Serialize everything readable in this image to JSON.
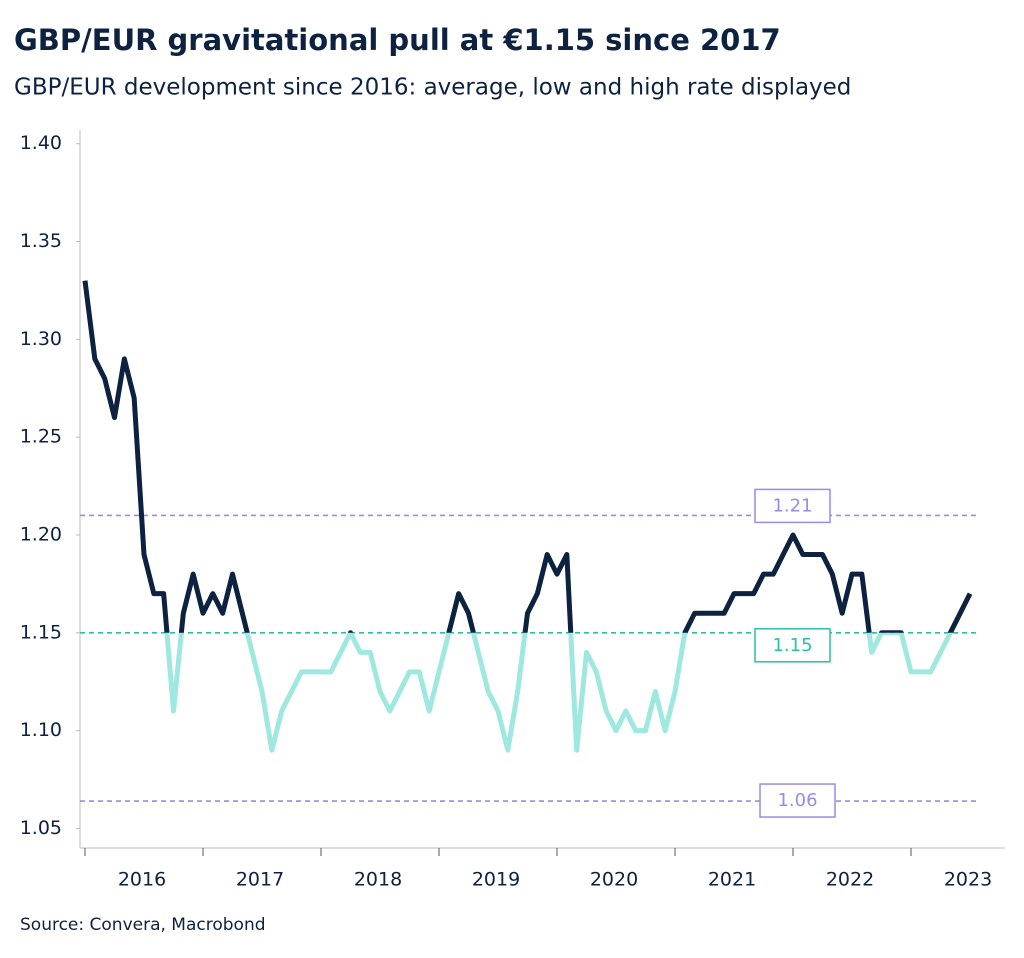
{
  "chart_data": {
    "type": "line",
    "title": "GBP/EUR gravitational pull at €1.15 since 2017",
    "subtitle": "GBP/EUR development since 2016: average, low and high rate displayed",
    "source": "Source: Convera, Macrobond",
    "categories": [
      null,
      null,
      null,
      null,
      null,
      null,
      "2016",
      null,
      null,
      null,
      null,
      null,
      null,
      null,
      null,
      null,
      null,
      null,
      "2017",
      null,
      null,
      null,
      null,
      null,
      null,
      null,
      null,
      null,
      null,
      null,
      "2018",
      null,
      null,
      null,
      null,
      null,
      null,
      null,
      null,
      null,
      null,
      null,
      "2019",
      null,
      null,
      null,
      null,
      null,
      null,
      null,
      null,
      null,
      null,
      null,
      "2020",
      null,
      null,
      null,
      null,
      null,
      null,
      null,
      null,
      null,
      null,
      null,
      "2021",
      null,
      null,
      null,
      null,
      null,
      null,
      null,
      null,
      null,
      null,
      null,
      "2022",
      null,
      null,
      null,
      null,
      null,
      null,
      null,
      null,
      null,
      null,
      null,
      "2023"
    ],
    "values": [
      1.33,
      1.29,
      1.28,
      1.26,
      1.29,
      1.27,
      1.19,
      1.17,
      1.17,
      1.11,
      1.16,
      1.18,
      1.16,
      1.17,
      1.16,
      1.18,
      1.16,
      1.14,
      1.12,
      1.09,
      1.11,
      1.12,
      1.13,
      1.13,
      1.13,
      1.13,
      1.14,
      1.15,
      1.14,
      1.14,
      1.12,
      1.11,
      1.12,
      1.13,
      1.13,
      1.11,
      1.13,
      1.15,
      1.17,
      1.16,
      1.14,
      1.12,
      1.11,
      1.09,
      1.12,
      1.16,
      1.17,
      1.19,
      1.18,
      1.19,
      1.09,
      1.14,
      1.13,
      1.11,
      1.1,
      1.11,
      1.1,
      1.1,
      1.12,
      1.1,
      1.12,
      1.15,
      1.16,
      1.16,
      1.16,
      1.16,
      1.17,
      1.17,
      1.17,
      1.18,
      1.18,
      1.19,
      1.2,
      1.19,
      1.19,
      1.19,
      1.18,
      1.16,
      1.18,
      1.18,
      1.14,
      1.15,
      1.15,
      1.15,
      1.13,
      1.13,
      1.13,
      1.14,
      1.15,
      1.16,
      1.17
    ],
    "color": "#0d2240",
    "color_below": "#9ee8df",
    "reference_lines": [
      {
        "value": 1.21,
        "label": "1.21",
        "color": "#9b8ae6"
      },
      {
        "value": 1.15,
        "label": "1.15",
        "color": "#2bbfa4",
        "splits_color": true
      },
      {
        "value": 1.064,
        "label": "1.06",
        "color": "#9b8ae6"
      }
    ],
    "ylim": [
      1.04,
      1.407
    ],
    "yticks": [
      {
        "value": 1.05,
        "label": "1.05"
      },
      {
        "value": 1.1,
        "label": "1.10"
      },
      1.15,
      {
        "value": 1.2,
        "label": "1.20"
      },
      1.25,
      {
        "value": 1.3,
        "label": "1.30"
      },
      1.35,
      {
        "value": 1.4,
        "label": "1.40"
      }
    ]
  }
}
